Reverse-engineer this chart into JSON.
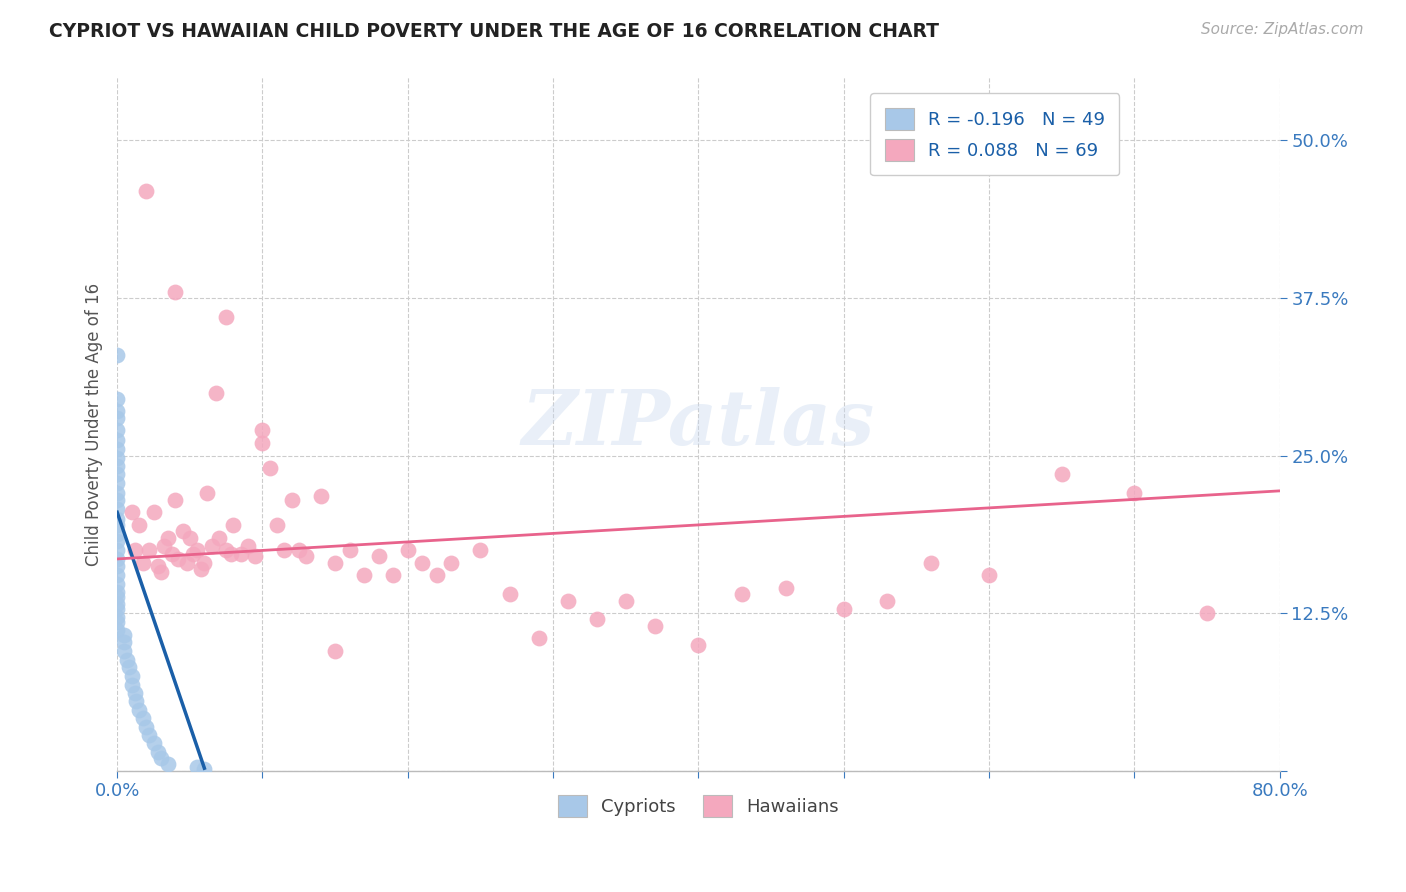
{
  "title": "CYPRIOT VS HAWAIIAN CHILD POVERTY UNDER THE AGE OF 16 CORRELATION CHART",
  "source": "Source: ZipAtlas.com",
  "ylabel": "Child Poverty Under the Age of 16",
  "xlim": [
    0,
    0.8
  ],
  "ylim": [
    0,
    0.55
  ],
  "xticks": [
    0.0,
    0.1,
    0.2,
    0.3,
    0.4,
    0.5,
    0.6,
    0.7,
    0.8
  ],
  "ytick_positions": [
    0.0,
    0.125,
    0.25,
    0.375,
    0.5
  ],
  "ytick_labels": [
    "",
    "12.5%",
    "25.0%",
    "37.5%",
    "50.0%"
  ],
  "cypriot_color": "#a8c8e8",
  "hawaiian_color": "#f4a8be",
  "cypriot_line_color": "#1a5fa8",
  "hawaiian_line_color": "#e8638c",
  "legend_R_cypriot": "-0.196",
  "legend_N_cypriot": "49",
  "legend_R_hawaiian": "0.088",
  "legend_N_hawaiian": "69",
  "watermark": "ZIPatlas",
  "background_color": "#ffffff",
  "grid_color": "#cccccc",
  "cypriot_x": [
    0.0,
    0.0,
    0.0,
    0.0,
    0.0,
    0.0,
    0.0,
    0.0,
    0.0,
    0.0,
    0.0,
    0.0,
    0.0,
    0.0,
    0.0,
    0.0,
    0.0,
    0.0,
    0.0,
    0.0,
    0.0,
    0.0,
    0.0,
    0.0,
    0.0,
    0.0,
    0.0,
    0.0,
    0.0,
    0.0,
    0.005,
    0.005,
    0.005,
    0.007,
    0.008,
    0.01,
    0.01,
    0.012,
    0.013,
    0.015,
    0.018,
    0.02,
    0.022,
    0.025,
    0.028,
    0.03,
    0.035,
    0.055,
    0.06
  ],
  "cypriot_y": [
    0.33,
    0.295,
    0.285,
    0.28,
    0.27,
    0.262,
    0.255,
    0.248,
    0.242,
    0.235,
    0.228,
    0.22,
    0.215,
    0.208,
    0.2,
    0.195,
    0.188,
    0.182,
    0.175,
    0.168,
    0.162,
    0.155,
    0.148,
    0.142,
    0.138,
    0.132,
    0.128,
    0.122,
    0.118,
    0.112,
    0.108,
    0.102,
    0.095,
    0.088,
    0.082,
    0.075,
    0.068,
    0.062,
    0.055,
    0.048,
    0.042,
    0.035,
    0.028,
    0.022,
    0.015,
    0.01,
    0.005,
    0.003,
    0.001
  ],
  "hawaiian_x": [
    0.01,
    0.012,
    0.015,
    0.018,
    0.02,
    0.022,
    0.025,
    0.028,
    0.03,
    0.032,
    0.035,
    0.038,
    0.04,
    0.042,
    0.045,
    0.048,
    0.05,
    0.052,
    0.055,
    0.058,
    0.06,
    0.062,
    0.065,
    0.068,
    0.07,
    0.075,
    0.078,
    0.08,
    0.085,
    0.09,
    0.095,
    0.1,
    0.105,
    0.11,
    0.115,
    0.12,
    0.125,
    0.13,
    0.14,
    0.15,
    0.16,
    0.17,
    0.18,
    0.19,
    0.2,
    0.21,
    0.22,
    0.23,
    0.25,
    0.27,
    0.29,
    0.31,
    0.33,
    0.35,
    0.37,
    0.4,
    0.43,
    0.46,
    0.5,
    0.53,
    0.56,
    0.6,
    0.65,
    0.7,
    0.75,
    0.04,
    0.075,
    0.1,
    0.15
  ],
  "hawaiian_y": [
    0.205,
    0.175,
    0.195,
    0.165,
    0.46,
    0.175,
    0.205,
    0.162,
    0.158,
    0.178,
    0.185,
    0.172,
    0.215,
    0.168,
    0.19,
    0.165,
    0.185,
    0.172,
    0.175,
    0.16,
    0.165,
    0.22,
    0.178,
    0.3,
    0.185,
    0.175,
    0.172,
    0.195,
    0.172,
    0.178,
    0.17,
    0.27,
    0.24,
    0.195,
    0.175,
    0.215,
    0.175,
    0.17,
    0.218,
    0.165,
    0.175,
    0.155,
    0.17,
    0.155,
    0.175,
    0.165,
    0.155,
    0.165,
    0.175,
    0.14,
    0.105,
    0.135,
    0.12,
    0.135,
    0.115,
    0.1,
    0.14,
    0.145,
    0.128,
    0.135,
    0.165,
    0.155,
    0.235,
    0.22,
    0.125,
    0.38,
    0.36,
    0.26,
    0.095
  ],
  "cypriot_trendline_x": [
    0.0,
    0.06
  ],
  "cypriot_trendline_y": [
    0.205,
    0.002
  ],
  "hawaiian_trendline_x": [
    0.0,
    0.8
  ],
  "hawaiian_trendline_y": [
    0.168,
    0.222
  ]
}
